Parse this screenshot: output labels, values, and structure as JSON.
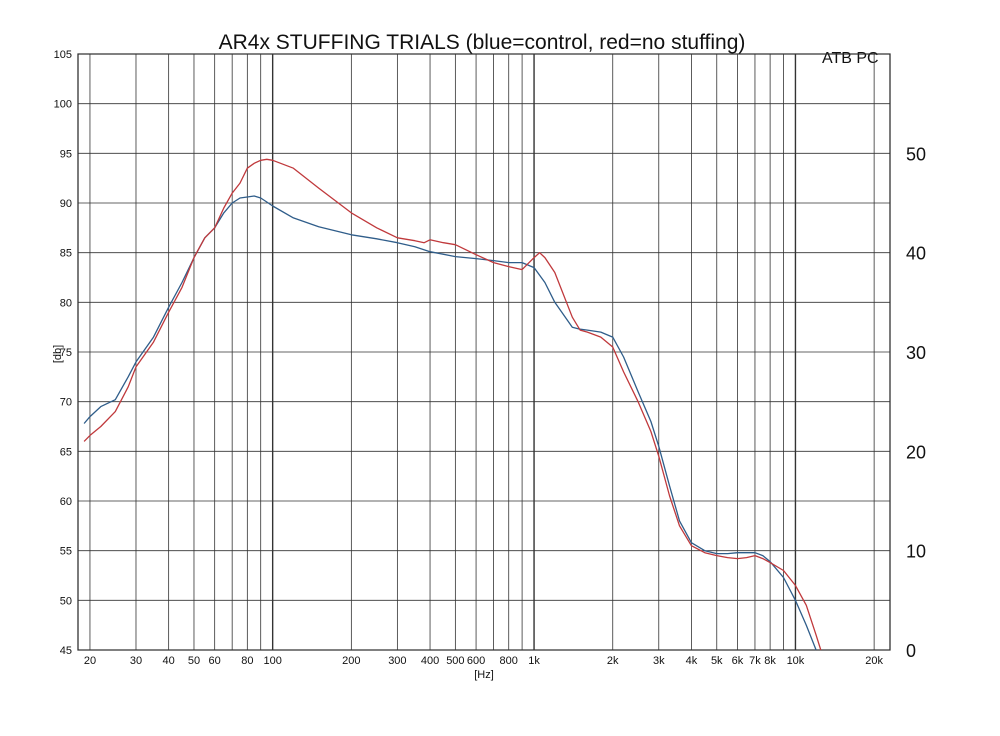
{
  "chart_data": {
    "type": "line",
    "title": "AR4x STUFFING TRIALS (blue=control, red=no stuffing)",
    "corner_label": "ATB PC",
    "xlabel": "[Hz]",
    "ylabel": "[db]",
    "x_scale": "log",
    "xlim": [
      18,
      23000
    ],
    "ylim": [
      45,
      105
    ],
    "grid": true,
    "x_ticks": [
      20,
      30,
      40,
      50,
      60,
      80,
      100,
      200,
      300,
      400,
      500,
      600,
      800,
      1000,
      2000,
      3000,
      4000,
      5000,
      6000,
      7000,
      8000,
      10000,
      20000
    ],
    "x_tick_labels": [
      "20",
      "30",
      "40",
      "50",
      "60",
      "80",
      "100",
      "200",
      "300",
      "400",
      "500",
      "600",
      "800",
      "1k",
      "2k",
      "3k",
      "4k",
      "5k",
      "6k",
      "7k",
      "8k",
      "10k",
      "20k"
    ],
    "y_ticks": [
      45,
      50,
      55,
      60,
      65,
      70,
      75,
      80,
      85,
      90,
      95,
      100,
      105
    ],
    "y_tick_labels": [
      "45",
      "50",
      "55",
      "60",
      "65",
      "70",
      "75",
      "80",
      "85",
      "90",
      "95",
      "100",
      "105"
    ],
    "right_ticks": [
      0,
      10,
      20,
      30,
      40,
      50
    ],
    "right_tick_labels": [
      "0",
      "10",
      "20",
      "30",
      "40",
      "50"
    ],
    "series": [
      {
        "name": "blue=control",
        "color": "#2f5d8a",
        "x": [
          19,
          20,
          22,
          25,
          28,
          30,
          35,
          40,
          45,
          50,
          55,
          60,
          65,
          70,
          75,
          80,
          85,
          90,
          95,
          100,
          120,
          150,
          200,
          250,
          300,
          350,
          400,
          500,
          600,
          700,
          800,
          900,
          1000,
          1100,
          1200,
          1400,
          1500,
          1600,
          1800,
          2000,
          2200,
          2500,
          2800,
          3000,
          3300,
          3600,
          4000,
          4500,
          5000,
          5500,
          6000,
          6500,
          7000,
          7500,
          8000,
          9000,
          10000,
          11000,
          12000
        ],
        "y": [
          67.8,
          68.5,
          69.5,
          70.2,
          72.5,
          74.0,
          76.5,
          79.5,
          82.0,
          84.5,
          86.5,
          87.5,
          89.0,
          90.0,
          90.5,
          90.6,
          90.7,
          90.5,
          90.1,
          89.7,
          88.5,
          87.6,
          86.8,
          86.4,
          86.0,
          85.6,
          85.1,
          84.6,
          84.4,
          84.2,
          84.0,
          84.0,
          83.5,
          82.0,
          80.0,
          77.5,
          77.3,
          77.2,
          77.0,
          76.5,
          74.5,
          71.0,
          68.0,
          65.5,
          61.5,
          58.0,
          55.8,
          55.0,
          54.7,
          54.7,
          54.8,
          54.8,
          54.8,
          54.5,
          53.9,
          52.3,
          50.0,
          47.5,
          45.0
        ]
      },
      {
        "name": "red=no stuffing",
        "color": "#c0393c",
        "x": [
          19,
          20,
          22,
          25,
          28,
          30,
          35,
          40,
          45,
          50,
          55,
          60,
          65,
          70,
          75,
          80,
          85,
          90,
          95,
          100,
          120,
          150,
          200,
          250,
          300,
          350,
          380,
          400,
          450,
          500,
          600,
          700,
          800,
          900,
          1000,
          1050,
          1100,
          1200,
          1400,
          1500,
          1600,
          1800,
          2000,
          2200,
          2500,
          2800,
          3000,
          3300,
          3600,
          4000,
          4500,
          5000,
          5500,
          6000,
          6500,
          7000,
          7500,
          8000,
          9000,
          10000,
          11000,
          12000,
          12500
        ],
        "y": [
          66.0,
          66.6,
          67.5,
          69.0,
          71.5,
          73.5,
          76.0,
          79.0,
          81.5,
          84.5,
          86.5,
          87.5,
          89.5,
          91.0,
          92.0,
          93.5,
          94.0,
          94.3,
          94.4,
          94.3,
          93.5,
          91.5,
          89.0,
          87.5,
          86.5,
          86.2,
          86.0,
          86.3,
          86.0,
          85.8,
          84.8,
          84.0,
          83.6,
          83.3,
          84.5,
          85.0,
          84.5,
          83.0,
          78.5,
          77.2,
          77.0,
          76.5,
          75.5,
          73.0,
          70.0,
          67.0,
          64.5,
          60.5,
          57.5,
          55.5,
          54.8,
          54.5,
          54.3,
          54.2,
          54.3,
          54.5,
          54.2,
          53.8,
          53.0,
          51.5,
          49.5,
          46.5,
          45.0
        ]
      }
    ]
  }
}
